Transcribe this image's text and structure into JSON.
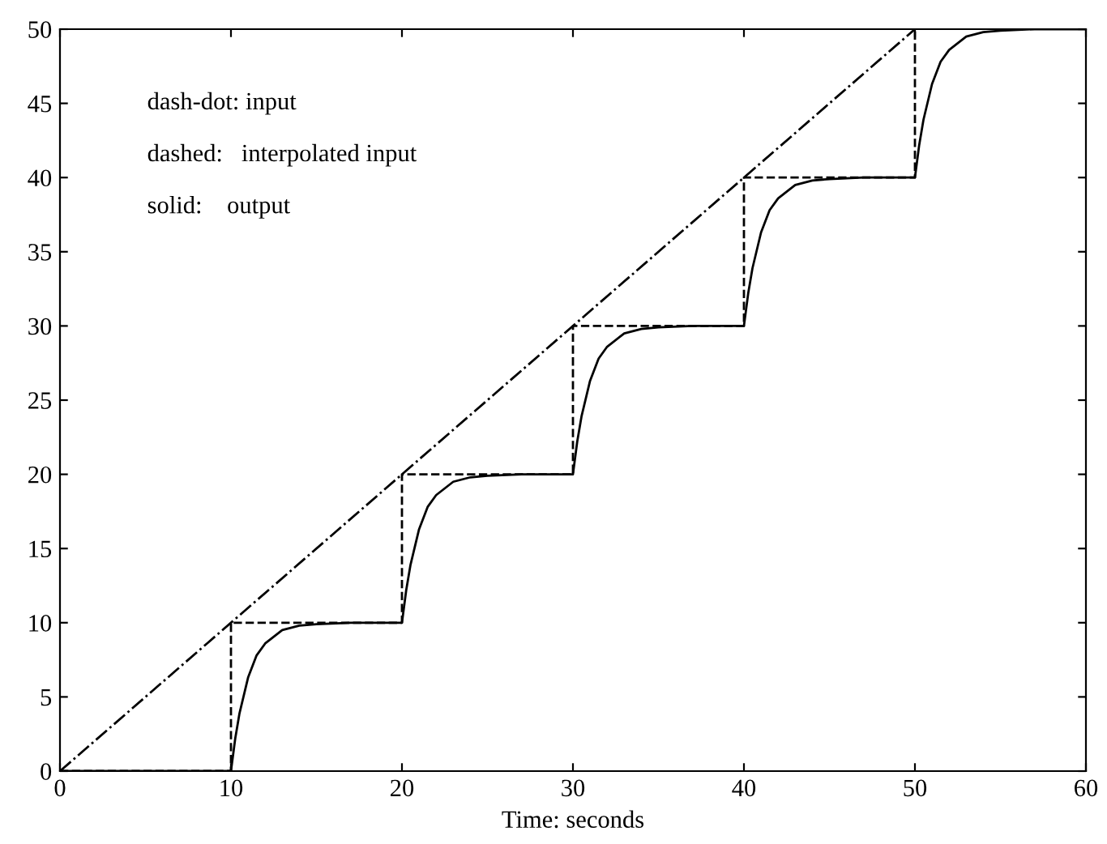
{
  "chart_data": {
    "type": "line",
    "xlabel": "Time: seconds",
    "annotations": [
      "dash-dot: input",
      "dashed:   interpolated input",
      "solid:    output"
    ],
    "xlim": [
      0,
      60
    ],
    "xticks": [
      0,
      10,
      20,
      30,
      40,
      50,
      60
    ],
    "ylim": [
      0,
      50
    ],
    "yticks": [
      0,
      5,
      10,
      15,
      20,
      25,
      30,
      35,
      40,
      45,
      50
    ],
    "grid": false,
    "marker": "none",
    "series": [
      {
        "color": "#000000",
        "line_style": "dashdot",
        "x": [
          0,
          50
        ],
        "values": [
          0,
          50
        ]
      },
      {
        "type": "step",
        "color": "#000000",
        "line_style": "dashed",
        "x": [
          0,
          10,
          20,
          30,
          40,
          50
        ],
        "values": [
          0,
          10,
          20,
          30,
          40,
          50
        ]
      },
      {
        "color": "#000000",
        "line_style": "solid",
        "x": [
          0,
          10,
          10.25,
          10.5,
          11,
          11.5,
          12,
          13,
          14,
          15,
          17,
          20,
          20.25,
          20.5,
          21,
          21.5,
          22,
          23,
          24,
          25,
          27,
          30,
          30.25,
          30.5,
          31,
          31.5,
          32,
          33,
          34,
          35,
          37,
          40,
          40.25,
          40.5,
          41,
          41.5,
          42,
          43,
          44,
          45,
          47,
          50,
          50.25,
          50.5,
          51,
          51.5,
          52,
          53,
          54,
          55,
          57,
          60
        ],
        "values": [
          0,
          0,
          2.2,
          3.9,
          6.3,
          7.8,
          8.6,
          9.5,
          9.8,
          9.9,
          10,
          10,
          12.2,
          13.9,
          16.3,
          17.8,
          18.6,
          19.5,
          19.8,
          19.9,
          20,
          20,
          22.2,
          23.9,
          26.3,
          27.8,
          28.6,
          29.5,
          29.8,
          29.9,
          30,
          30,
          32.2,
          33.9,
          36.3,
          37.8,
          38.6,
          39.5,
          39.8,
          39.9,
          40,
          40,
          42.2,
          43.9,
          46.3,
          47.8,
          48.6,
          49.5,
          49.8,
          49.9,
          50,
          50
        ]
      }
    ]
  }
}
